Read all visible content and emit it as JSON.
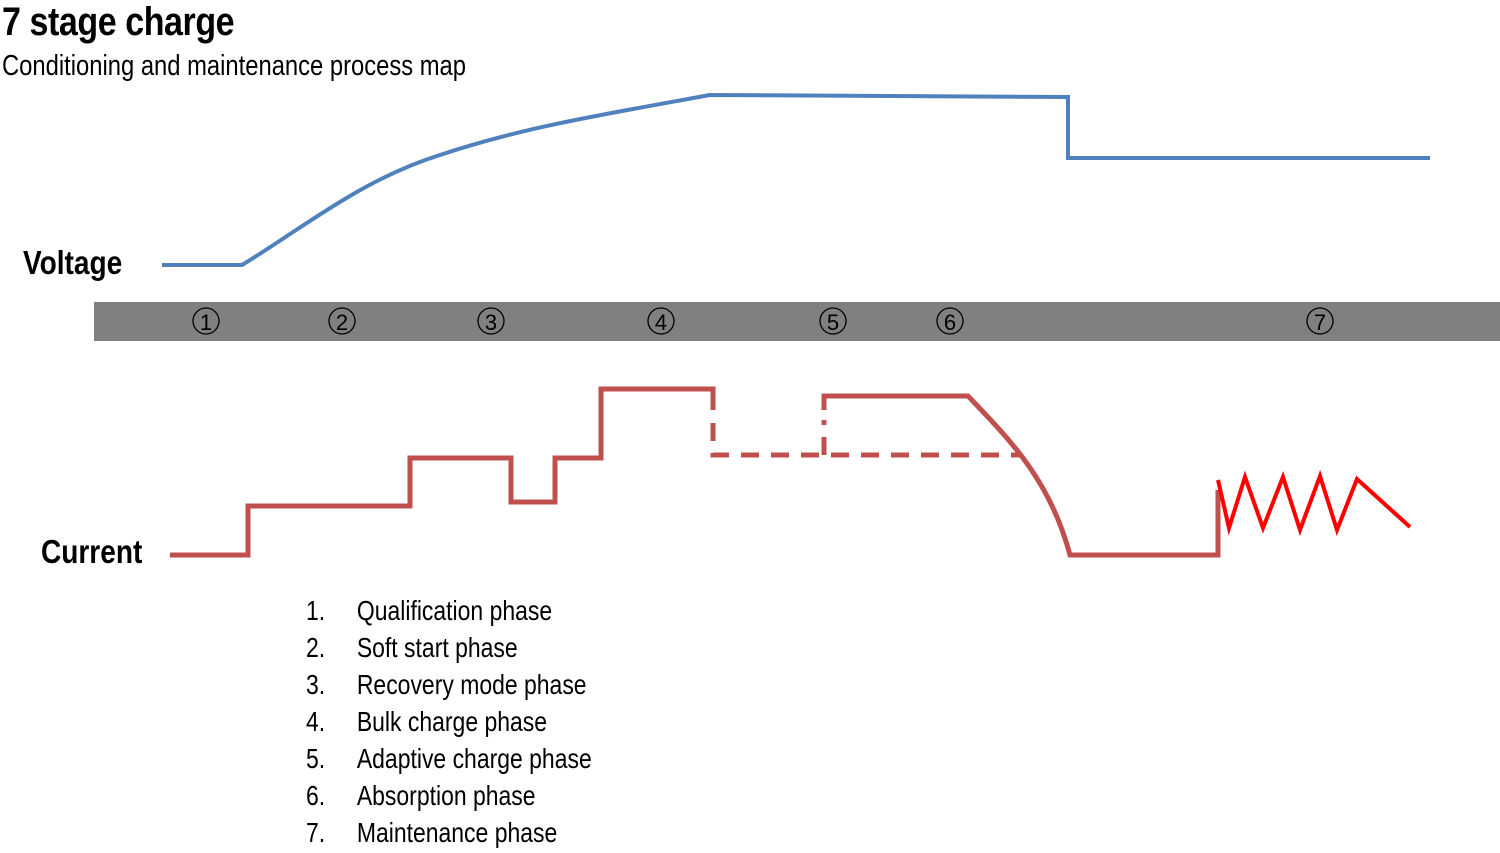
{
  "title": "7 stage charge",
  "subtitle": "Conditioning and maintenance process map",
  "labels": {
    "voltage": "Voltage",
    "current": "Current"
  },
  "stage_markers": [
    "1",
    "2",
    "3",
    "4",
    "5",
    "6",
    "7"
  ],
  "legend": [
    {
      "num": "1.",
      "label": "Qualification phase"
    },
    {
      "num": "2.",
      "label": "Soft start phase"
    },
    {
      "num": "3.",
      "label": "Recovery mode phase"
    },
    {
      "num": "4.",
      "label": "Bulk charge phase"
    },
    {
      "num": "5.",
      "label": "Adaptive charge phase"
    },
    {
      "num": "6.",
      "label": "Absorption phase"
    },
    {
      "num": "7.",
      "label": "Maintenance phase"
    }
  ],
  "colors": {
    "voltage": "#4f81bd",
    "current": "#c0504d",
    "maintenance": "#ff0000",
    "stage_bar": "#808080"
  }
}
